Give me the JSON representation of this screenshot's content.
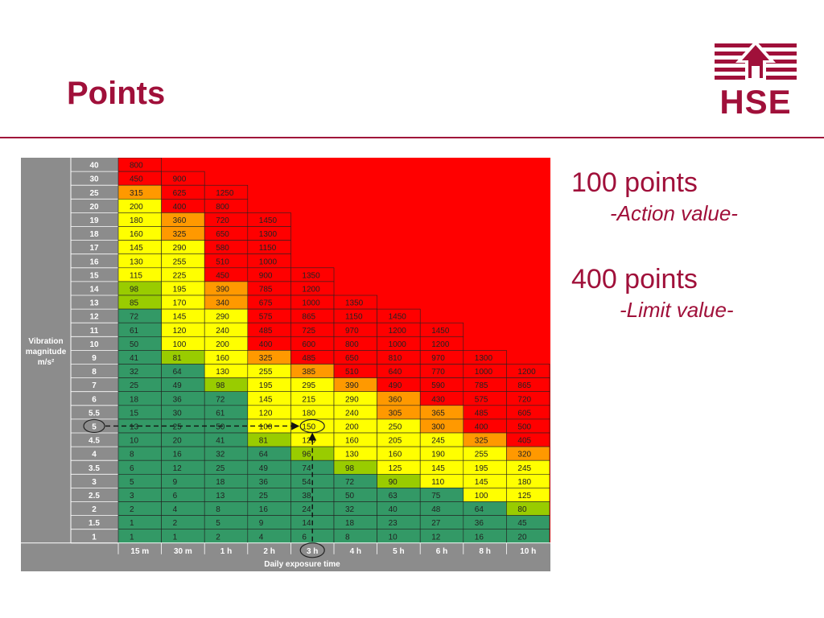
{
  "slide": {
    "title": "Points",
    "logo_text": "HSE"
  },
  "notes": {
    "action_points": "100 points",
    "action_label": "-Action value-",
    "limit_points": "400 points",
    "limit_label": "-Limit value-"
  },
  "colors": {
    "accent": "#a0103a",
    "red": "#ff0000",
    "orange": "#ff9900",
    "yellow": "#ffff00",
    "lightgreen": "#99cc00",
    "green": "#339966",
    "axis_gray": "#8c8c8c"
  },
  "chart_data": {
    "type": "table",
    "ylabel_lines": [
      "Vibration",
      "magnitude",
      "m/s²"
    ],
    "xlabel": "Daily exposure time",
    "columns": [
      "15 m",
      "30 m",
      "1 h",
      "2 h",
      "3 h",
      "4 h",
      "5 h",
      "6 h",
      "8 h",
      "10 h"
    ],
    "rows": [
      {
        "mag": "40",
        "values": [
          "800"
        ]
      },
      {
        "mag": "30",
        "values": [
          "450",
          "900"
        ]
      },
      {
        "mag": "25",
        "values": [
          "315",
          "625",
          "1250"
        ]
      },
      {
        "mag": "20",
        "values": [
          "200",
          "400",
          "800"
        ]
      },
      {
        "mag": "19",
        "values": [
          "180",
          "360",
          "720",
          "1450"
        ]
      },
      {
        "mag": "18",
        "values": [
          "160",
          "325",
          "650",
          "1300"
        ]
      },
      {
        "mag": "17",
        "values": [
          "145",
          "290",
          "580",
          "1150"
        ]
      },
      {
        "mag": "16",
        "values": [
          "130",
          "255",
          "510",
          "1000"
        ]
      },
      {
        "mag": "15",
        "values": [
          "115",
          "225",
          "450",
          "900",
          "1350"
        ]
      },
      {
        "mag": "14",
        "values": [
          "98",
          "195",
          "390",
          "785",
          "1200"
        ]
      },
      {
        "mag": "13",
        "values": [
          "85",
          "170",
          "340",
          "675",
          "1000",
          "1350"
        ]
      },
      {
        "mag": "12",
        "values": [
          "72",
          "145",
          "290",
          "575",
          "865",
          "1150",
          "1450"
        ]
      },
      {
        "mag": "11",
        "values": [
          "61",
          "120",
          "240",
          "485",
          "725",
          "970",
          "1200",
          "1450"
        ]
      },
      {
        "mag": "10",
        "values": [
          "50",
          "100",
          "200",
          "400",
          "600",
          "800",
          "1000",
          "1200"
        ]
      },
      {
        "mag": "9",
        "values": [
          "41",
          "81",
          "160",
          "325",
          "485",
          "650",
          "810",
          "970",
          "1300"
        ]
      },
      {
        "mag": "8",
        "values": [
          "32",
          "64",
          "130",
          "255",
          "385",
          "510",
          "640",
          "770",
          "1000",
          "1200"
        ]
      },
      {
        "mag": "7",
        "values": [
          "25",
          "49",
          "98",
          "195",
          "295",
          "390",
          "490",
          "590",
          "785",
          "865"
        ]
      },
      {
        "mag": "6",
        "values": [
          "18",
          "36",
          "72",
          "145",
          "215",
          "290",
          "360",
          "430",
          "575",
          "720"
        ]
      },
      {
        "mag": "5.5",
        "values": [
          "15",
          "30",
          "61",
          "120",
          "180",
          "240",
          "305",
          "365",
          "485",
          "605"
        ]
      },
      {
        "mag": "5",
        "values": [
          "13",
          "25",
          "50",
          "100",
          "150",
          "200",
          "250",
          "300",
          "400",
          "500"
        ]
      },
      {
        "mag": "4.5",
        "values": [
          "10",
          "20",
          "41",
          "81",
          "120",
          "160",
          "205",
          "245",
          "325",
          "405"
        ]
      },
      {
        "mag": "4",
        "values": [
          "8",
          "16",
          "32",
          "64",
          "96",
          "130",
          "160",
          "190",
          "255",
          "320"
        ]
      },
      {
        "mag": "3.5",
        "values": [
          "6",
          "12",
          "25",
          "49",
          "74",
          "98",
          "125",
          "145",
          "195",
          "245"
        ]
      },
      {
        "mag": "3",
        "values": [
          "5",
          "9",
          "18",
          "36",
          "54",
          "72",
          "90",
          "110",
          "145",
          "180"
        ]
      },
      {
        "mag": "2.5",
        "values": [
          "3",
          "6",
          "13",
          "25",
          "38",
          "50",
          "63",
          "75",
          "100",
          "125"
        ]
      },
      {
        "mag": "2",
        "values": [
          "2",
          "4",
          "8",
          "16",
          "24",
          "32",
          "40",
          "48",
          "64",
          "80"
        ]
      },
      {
        "mag": "1.5",
        "values": [
          "1",
          "2",
          "5",
          "9",
          "14",
          "18",
          "23",
          "27",
          "36",
          "45"
        ]
      },
      {
        "mag": "1",
        "values": [
          "1",
          "1",
          "2",
          "4",
          "6",
          "8",
          "10",
          "12",
          "16",
          "20"
        ]
      }
    ],
    "bands": [
      {
        "min": 0,
        "max": 79,
        "color": "#339966"
      },
      {
        "min": 80,
        "max": 99,
        "color": "#99cc00"
      },
      {
        "min": 100,
        "max": 299,
        "color": "#ffff00"
      },
      {
        "min": 300,
        "max": 399,
        "color": "#ff9900"
      },
      {
        "min": 400,
        "max": 100000,
        "color": "#ff0000"
      }
    ],
    "highlight": {
      "row": "5",
      "column": "3 h",
      "value": "150"
    }
  }
}
